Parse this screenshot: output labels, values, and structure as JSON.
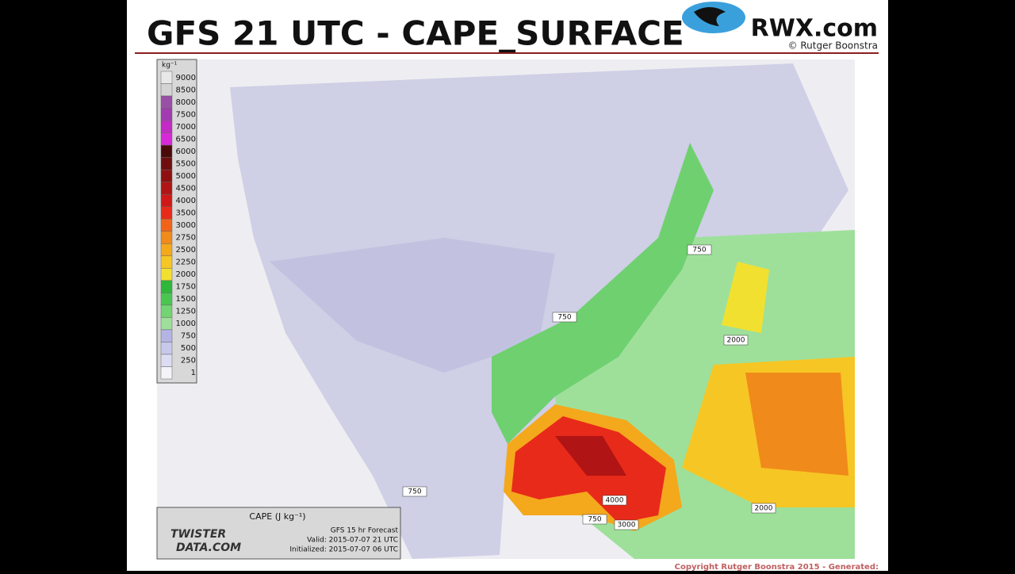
{
  "header": {
    "title": "GFS 21 UTC - CAPE_SURFACE",
    "logo": "RWX.com",
    "credit": "© Rutger Boonstra"
  },
  "legend": {
    "unit": "kg⁻¹",
    "items": [
      {
        "label": "9000",
        "color": "#e8e8e8"
      },
      {
        "label": "8500",
        "color": "#d4d4d4"
      },
      {
        "label": "8000",
        "color": "#9a4fa6"
      },
      {
        "label": "7500",
        "color": "#a23bb0"
      },
      {
        "label": "7000",
        "color": "#c42ac4"
      },
      {
        "label": "6500",
        "color": "#d829d8"
      },
      {
        "label": "6000",
        "color": "#4a0a0a"
      },
      {
        "label": "5500",
        "color": "#6e0e0e"
      },
      {
        "label": "5000",
        "color": "#8e1010"
      },
      {
        "label": "4500",
        "color": "#b01414"
      },
      {
        "label": "4000",
        "color": "#d01818"
      },
      {
        "label": "3500",
        "color": "#e82a1a"
      },
      {
        "label": "3000",
        "color": "#f0641a"
      },
      {
        "label": "2750",
        "color": "#f08a1a"
      },
      {
        "label": "2500",
        "color": "#f4a81c"
      },
      {
        "label": "2250",
        "color": "#f6c624"
      },
      {
        "label": "2000",
        "color": "#f2e030"
      },
      {
        "label": "1750",
        "color": "#2eb83a"
      },
      {
        "label": "1500",
        "color": "#4ac650"
      },
      {
        "label": "1250",
        "color": "#72d472"
      },
      {
        "label": "1000",
        "color": "#9ee09a"
      },
      {
        "label": "750",
        "color": "#b4b4e4"
      },
      {
        "label": "500",
        "color": "#c8c8ec"
      },
      {
        "label": "250",
        "color": "#dcdcf2"
      },
      {
        "label": "1",
        "color": "#f4f4f8"
      }
    ]
  },
  "contour_labels": [
    "750",
    "750",
    "2000",
    "750",
    "4000",
    "750",
    "3000",
    "2000"
  ],
  "info_box": {
    "variable": "CAPE (J kg⁻¹)",
    "brand_line1": "TWISTER",
    "brand_line2": "DATA.COM",
    "forecast": "GFS 15 hr Forecast",
    "valid": "Valid: 2015-07-07 21 UTC",
    "initialized": "Initialized: 2015-07-07 06 UTC"
  },
  "footer": "Copyright Rutger Boonstra 2015 - Generated:"
}
